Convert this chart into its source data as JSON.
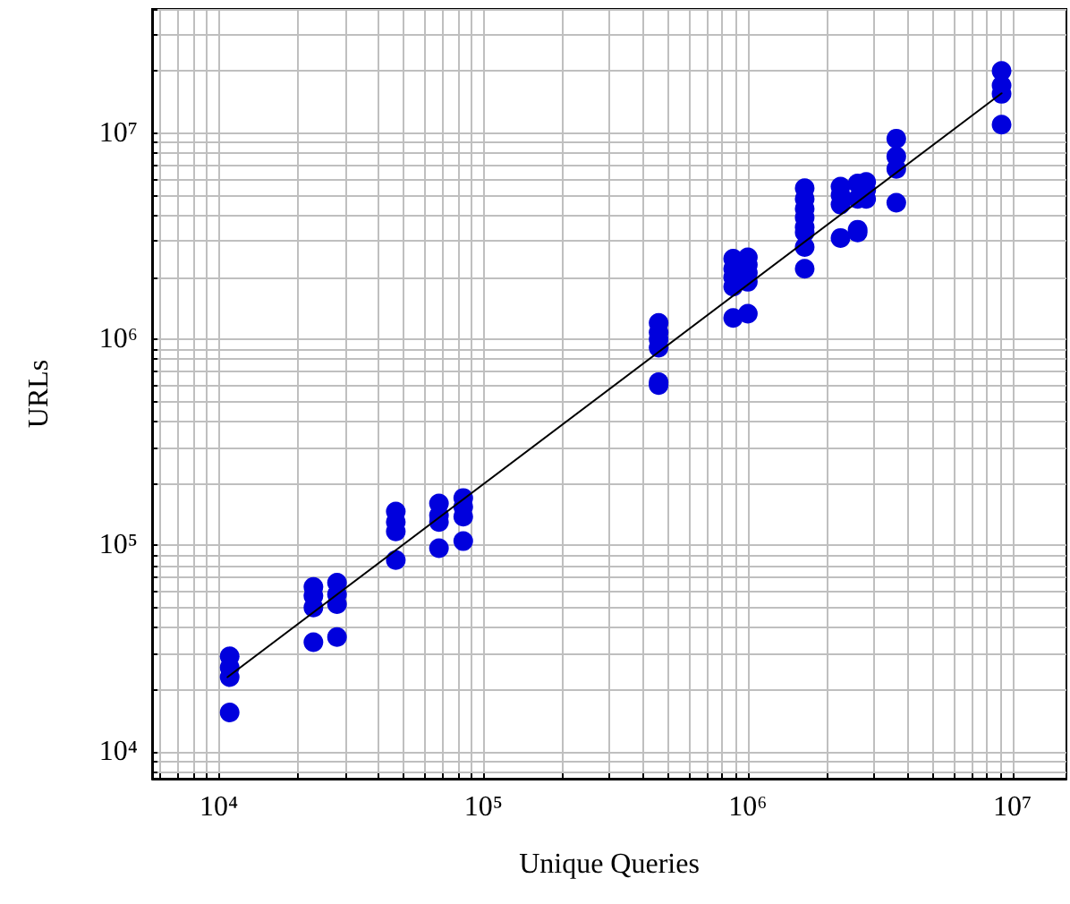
{
  "chart_data": {
    "type": "scatter",
    "xlabel": "Unique Queries",
    "ylabel": "URLs",
    "log": "xy",
    "grid": true,
    "marker": "circle",
    "xlim": [
      5600,
      16000000
    ],
    "ylim": [
      7400,
      40000000
    ],
    "xticks": [
      {
        "value": 10000,
        "label": "10⁴"
      },
      {
        "value": 100000,
        "label": "10⁵"
      },
      {
        "value": 1000000,
        "label": "10⁶"
      },
      {
        "value": 10000000,
        "label": "10⁷"
      }
    ],
    "yticks": [
      {
        "value": 10000,
        "label": "10⁴"
      },
      {
        "value": 100000,
        "label": "10⁵"
      },
      {
        "value": 1000000,
        "label": "10⁶"
      },
      {
        "value": 10000000,
        "label": "10⁷"
      }
    ],
    "series": [
      {
        "color": "#0000dd",
        "x": [
          11000,
          11000,
          11000,
          11000,
          22800,
          22800,
          22800,
          22800,
          28000,
          28000,
          28000,
          28000,
          46700,
          46700,
          46700,
          46700,
          68000,
          68000,
          68000,
          68000,
          84000,
          84000,
          84000,
          84000,
          460000,
          460000,
          460000,
          460000,
          460000,
          460000,
          880000,
          880000,
          880000,
          880000,
          880000,
          1000000,
          1000000,
          1000000,
          1000000,
          1000000,
          1640000,
          1640000,
          1640000,
          1640000,
          1640000,
          1640000,
          1640000,
          1640000,
          2240000,
          2240000,
          2240000,
          2240000,
          2600000,
          2600000,
          2600000,
          2600000,
          2800000,
          2800000,
          2800000,
          3640000,
          3640000,
          3640000,
          3640000,
          9100000,
          9100000,
          9100000,
          9100000
        ],
        "values": [
          29000,
          25600,
          23000,
          15500,
          63000,
          57000,
          50000,
          34000,
          66000,
          58000,
          52000,
          36000,
          146000,
          130000,
          117000,
          85000,
          160000,
          140000,
          130000,
          97000,
          170000,
          154000,
          138000,
          105000,
          1200000,
          1080000,
          1000000,
          910000,
          620000,
          600000,
          2460000,
          2200000,
          2000000,
          1800000,
          1270000,
          2500000,
          2300000,
          2100000,
          1900000,
          1330000,
          5400000,
          4800000,
          4300000,
          3900000,
          3500000,
          3300000,
          2800000,
          2200000,
          5500000,
          5000000,
          4500000,
          3100000,
          5700000,
          4800000,
          3400000,
          3300000,
          5800000,
          5300000,
          4800000,
          9400000,
          7700000,
          6700000,
          4600000,
          20000000,
          17000000,
          15500000,
          11000000
        ]
      },
      {
        "type": "line",
        "color": "#000000",
        "marker": "none",
        "x": [
          10800,
          9100000
        ],
        "values": [
          23000,
          15600000
        ]
      }
    ]
  }
}
